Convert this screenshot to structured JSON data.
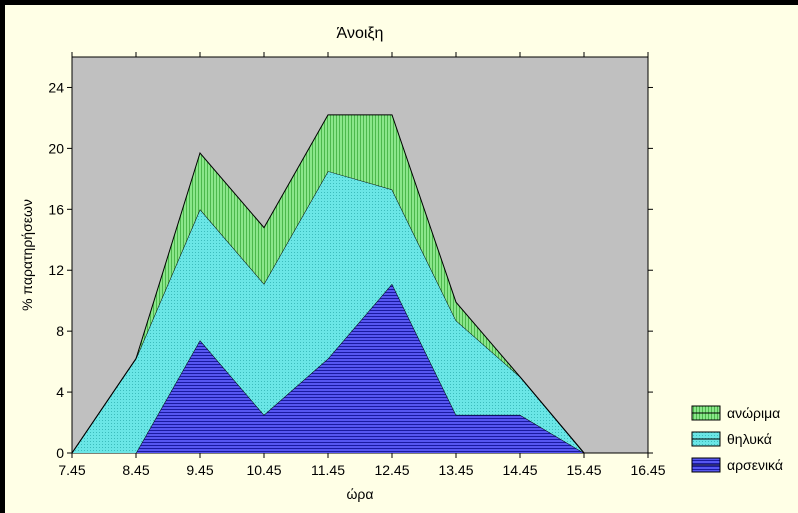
{
  "chart_data": {
    "type": "area",
    "stacked": true,
    "title": "Άνοιξη",
    "xlabel": "ώρα",
    "ylabel": "% παρατηρήσεων",
    "x": [
      7.45,
      8.45,
      9.45,
      10.45,
      11.45,
      12.45,
      13.45,
      14.45,
      15.45,
      16.45
    ],
    "x_tick_labels": [
      "7.45",
      "8.45",
      "9.45",
      "10.45",
      "11.45",
      "12.45",
      "13.45",
      "14.45",
      "15.45",
      "16.45"
    ],
    "y_ticks": [
      0,
      4,
      8,
      12,
      16,
      20,
      24
    ],
    "ylim": [
      0,
      26
    ],
    "xlim": [
      7.45,
      16.45
    ],
    "grid": false,
    "legend_position": "bottom-right",
    "series": [
      {
        "name": "αρσενικά",
        "color": "#4a4ae6",
        "values": [
          0,
          0,
          7.4,
          2.5,
          6.2,
          11.1,
          2.5,
          2.5,
          0,
          null
        ]
      },
      {
        "name": "θηλυκά",
        "color": "#5ee0e0",
        "values": [
          0,
          6.2,
          8.6,
          8.6,
          12.3,
          6.2,
          6.2,
          2.5,
          0,
          null
        ]
      },
      {
        "name": "ανώριμα",
        "color": "#7ce07c",
        "values": [
          0,
          0,
          3.7,
          3.7,
          3.7,
          4.9,
          1.2,
          0,
          0,
          null
        ]
      }
    ]
  }
}
